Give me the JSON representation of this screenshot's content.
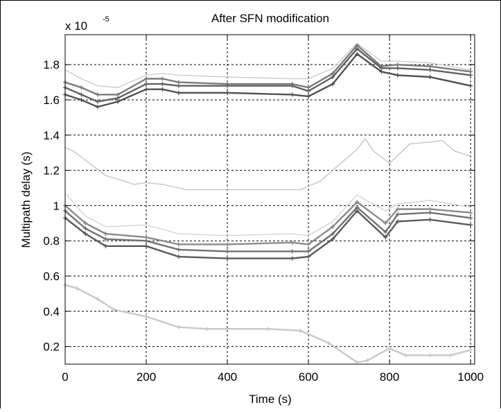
{
  "chart_data": {
    "type": "line",
    "title": "After SFN modification",
    "xlabel": "Time (s)",
    "ylabel": "Multipath delay (s)",
    "y_multiplier": "x 10",
    "y_multiplier_exponent": "-5",
    "xlim": [
      0,
      1010
    ],
    "ylim": [
      0.1,
      1.97
    ],
    "x_ticks": [
      0,
      200,
      400,
      600,
      800,
      1000
    ],
    "y_ticks": [
      0.2,
      0.4,
      0.6,
      0.8,
      1,
      1.2,
      1.4,
      1.6,
      1.8
    ],
    "x_tick_labels": [
      "0",
      "200",
      "400",
      "600",
      "800",
      "1000"
    ],
    "y_tick_labels": [
      "0.2",
      "0.4",
      "0.6",
      "0.8",
      "1",
      "1.2",
      "1.4",
      "1.6",
      "1.8"
    ],
    "grid": true,
    "series": [
      {
        "color": "#c8c8c8",
        "marker": true,
        "x": [
          0,
          30,
          80,
          120,
          200,
          280,
          350,
          500,
          580,
          650,
          720,
          745,
          800,
          840,
          900,
          950,
          1000
        ],
        "y": [
          0.55,
          0.53,
          0.47,
          0.41,
          0.37,
          0.31,
          0.3,
          0.3,
          0.29,
          0.22,
          0.11,
          0.12,
          0.19,
          0.15,
          0.15,
          0.15,
          0.18
        ]
      },
      {
        "color": "#c0c0c0",
        "marker": false,
        "x": [
          0,
          20,
          60,
          100,
          130,
          170,
          200,
          240,
          300,
          400,
          500,
          580,
          630,
          680,
          720,
          740,
          760,
          800,
          850,
          900,
          930,
          960,
          1000
        ],
        "y": [
          1.33,
          1.31,
          1.24,
          1.17,
          1.15,
          1.12,
          1.13,
          1.12,
          1.09,
          1.09,
          1.09,
          1.09,
          1.14,
          1.24,
          1.32,
          1.38,
          1.31,
          1.24,
          1.35,
          1.36,
          1.37,
          1.31,
          1.28
        ]
      },
      {
        "color": "#c8c8c8",
        "marker": false,
        "x": [
          0,
          40,
          80,
          130,
          200,
          240,
          280,
          400,
          560,
          600,
          660,
          720,
          780,
          820,
          900,
          1000
        ],
        "y": [
          1.77,
          1.72,
          1.68,
          1.67,
          1.74,
          1.75,
          1.74,
          1.73,
          1.72,
          1.72,
          1.78,
          1.92,
          1.82,
          1.82,
          1.81,
          1.77
        ]
      },
      {
        "color": "#7a7a7a",
        "marker": true,
        "x": [
          0,
          40,
          80,
          130,
          200,
          240,
          280,
          400,
          560,
          600,
          660,
          720,
          780,
          820,
          900,
          1000
        ],
        "y": [
          1.7,
          1.67,
          1.63,
          1.63,
          1.72,
          1.72,
          1.7,
          1.69,
          1.69,
          1.67,
          1.75,
          1.91,
          1.79,
          1.8,
          1.79,
          1.76
        ]
      },
      {
        "color": "#606060",
        "marker": true,
        "x": [
          0,
          40,
          80,
          130,
          200,
          240,
          280,
          400,
          560,
          600,
          660,
          720,
          780,
          820,
          900,
          1000
        ],
        "y": [
          1.67,
          1.63,
          1.59,
          1.61,
          1.69,
          1.69,
          1.68,
          1.68,
          1.68,
          1.65,
          1.73,
          1.89,
          1.78,
          1.78,
          1.77,
          1.74
        ]
      },
      {
        "color": "#505050",
        "marker": true,
        "x": [
          0,
          40,
          80,
          130,
          200,
          240,
          280,
          400,
          560,
          600,
          660,
          720,
          780,
          820,
          900,
          1000
        ],
        "y": [
          1.63,
          1.6,
          1.56,
          1.59,
          1.66,
          1.66,
          1.64,
          1.64,
          1.63,
          1.62,
          1.69,
          1.86,
          1.76,
          1.74,
          1.73,
          1.68
        ]
      },
      {
        "color": "#d0d0d0",
        "marker": false,
        "x": [
          0,
          50,
          100,
          200,
          280,
          400,
          560,
          600,
          660,
          720,
          790,
          820,
          900,
          1000
        ],
        "y": [
          1.07,
          0.94,
          0.88,
          0.89,
          0.84,
          0.83,
          0.84,
          0.83,
          0.91,
          1.06,
          0.97,
          1.01,
          1.03,
          0.99
        ]
      },
      {
        "color": "#8a8a8a",
        "marker": true,
        "x": [
          0,
          50,
          100,
          200,
          280,
          400,
          560,
          600,
          660,
          720,
          790,
          820,
          900,
          1000
        ],
        "y": [
          1.0,
          0.9,
          0.84,
          0.82,
          0.78,
          0.78,
          0.79,
          0.78,
          0.88,
          1.02,
          0.9,
          0.98,
          0.98,
          0.96
        ]
      },
      {
        "color": "#707070",
        "marker": true,
        "x": [
          0,
          50,
          100,
          200,
          280,
          400,
          560,
          600,
          660,
          720,
          790,
          820,
          900,
          1000
        ],
        "y": [
          0.97,
          0.87,
          0.81,
          0.8,
          0.75,
          0.74,
          0.74,
          0.74,
          0.84,
          0.99,
          0.85,
          0.95,
          0.96,
          0.93
        ]
      },
      {
        "color": "#5a5a5a",
        "marker": true,
        "x": [
          0,
          50,
          100,
          200,
          280,
          400,
          560,
          600,
          660,
          720,
          790,
          820,
          900,
          1000
        ],
        "y": [
          0.93,
          0.84,
          0.77,
          0.77,
          0.71,
          0.7,
          0.7,
          0.71,
          0.81,
          0.97,
          0.82,
          0.91,
          0.92,
          0.89
        ]
      }
    ]
  }
}
